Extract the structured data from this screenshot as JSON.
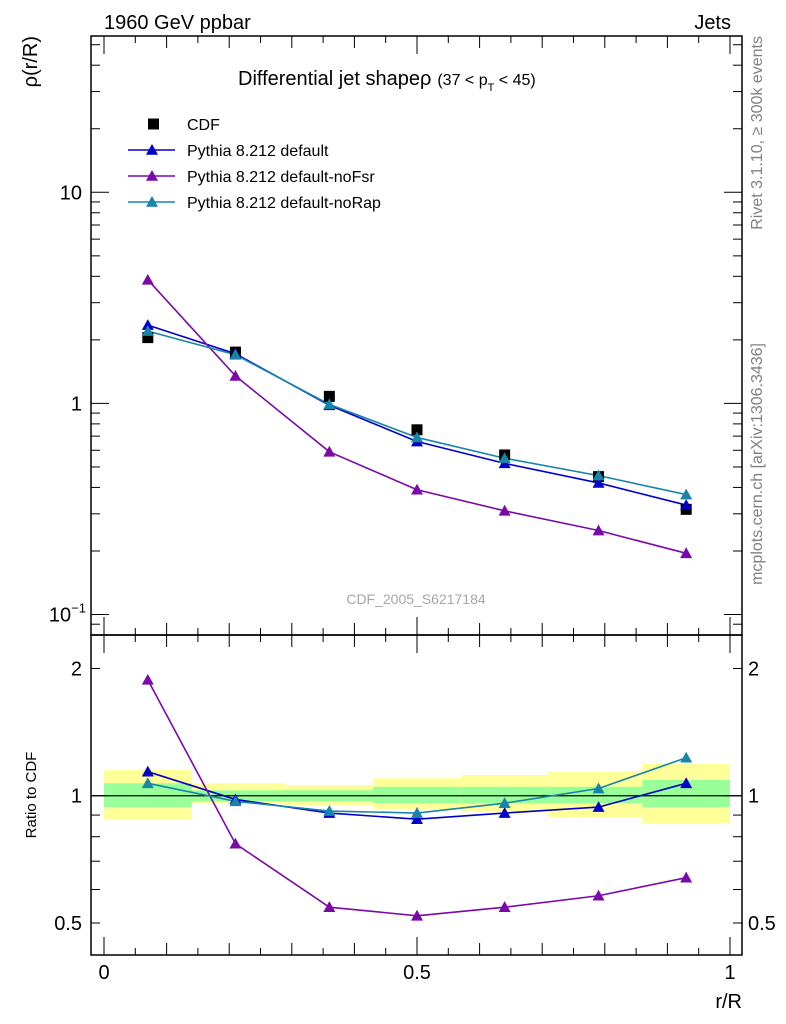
{
  "header": {
    "left": "1960 GeV ppbar",
    "right": "Jets"
  },
  "side_text": {
    "top": "Rivet 3.1.10, ≥ 300k events",
    "bottom": "mcplots.cern.ch [arXiv:1306.3436]"
  },
  "colors": {
    "data": "#000000",
    "default": "#0000cc",
    "noFsr": "#7a0aa8",
    "noRap": "#1784a8",
    "band_inner": "#99ff99",
    "band_outer": "#ffff99"
  },
  "chart_data": [
    {
      "type": "line",
      "title": "Differential jet shapeρ",
      "title_suffix": "(37 < p",
      "title_sub": "T",
      "title_end": " < 45)",
      "ylabel": "ρ(r/R)",
      "xlabel": "",
      "yscale": "log",
      "xlim": [
        0,
        1
      ],
      "ylim": [
        0.08,
        55
      ],
      "yticks": [
        {
          "value": 10,
          "label": "10"
        },
        {
          "value": 1,
          "label": "1"
        },
        {
          "value": 0.1,
          "label": "10",
          "sup": "−1"
        }
      ],
      "watermark": "CDF_2005_S6217184",
      "legend": "top-left",
      "x": [
        0.07,
        0.21,
        0.36,
        0.5,
        0.64,
        0.79,
        0.93
      ],
      "series": [
        {
          "name": "CDF",
          "style": "square",
          "color_key": "data",
          "values": [
            2.05,
            1.75,
            1.08,
            0.75,
            0.57,
            0.45,
            0.315
          ]
        },
        {
          "name": "Pythia 8.212 default",
          "style": "line",
          "color_key": "default",
          "values": [
            2.35,
            1.72,
            0.98,
            0.66,
            0.52,
            0.42,
            0.33
          ]
        },
        {
          "name": "Pythia 8.212 default-noFsr",
          "style": "line",
          "color_key": "noFsr",
          "values": [
            3.85,
            1.35,
            0.59,
            0.39,
            0.31,
            0.25,
            0.195
          ]
        },
        {
          "name": "Pythia 8.212 default-noRap",
          "style": "line",
          "color_key": "noRap",
          "values": [
            2.2,
            1.7,
            0.99,
            0.69,
            0.55,
            0.455,
            0.37
          ]
        }
      ]
    },
    {
      "type": "line",
      "title": "",
      "ylabel": "Ratio to CDF",
      "xlabel": "r/R",
      "yscale": "log",
      "xlim": [
        0,
        1
      ],
      "ylim": [
        0.42,
        2.4
      ],
      "yticks": [
        {
          "value": 2,
          "label": "2"
        },
        {
          "value": 1,
          "label": "1"
        },
        {
          "value": 0.5,
          "label": "0.5"
        }
      ],
      "xticks": [
        {
          "value": 0,
          "label": "0"
        },
        {
          "value": 0.5,
          "label": "0.5"
        },
        {
          "value": 1,
          "label": "1"
        }
      ],
      "bins": [
        [
          0,
          0.14
        ],
        [
          0.14,
          0.29
        ],
        [
          0.29,
          0.43
        ],
        [
          0.43,
          0.57
        ],
        [
          0.57,
          0.71
        ],
        [
          0.71,
          0.86
        ],
        [
          0.86,
          1.0
        ]
      ],
      "band_inner": [
        [
          0.94,
          1.07
        ],
        [
          0.97,
          1.03
        ],
        [
          0.97,
          1.03
        ],
        [
          0.96,
          1.05
        ],
        [
          0.96,
          1.05
        ],
        [
          0.96,
          1.05
        ],
        [
          0.94,
          1.09
        ]
      ],
      "band_outer": [
        [
          0.88,
          1.15
        ],
        [
          0.96,
          1.07
        ],
        [
          0.95,
          1.06
        ],
        [
          0.93,
          1.1
        ],
        [
          0.92,
          1.12
        ],
        [
          0.89,
          1.14
        ],
        [
          0.86,
          1.19
        ]
      ],
      "x": [
        0.07,
        0.21,
        0.36,
        0.5,
        0.64,
        0.79,
        0.93
      ],
      "series": [
        {
          "name": "Pythia 8.212 default",
          "color_key": "default",
          "values": [
            1.14,
            0.98,
            0.91,
            0.88,
            0.91,
            0.94,
            1.07
          ]
        },
        {
          "name": "Pythia 8.212 default-noFsr",
          "color_key": "noFsr",
          "values": [
            1.88,
            0.77,
            0.545,
            0.52,
            0.545,
            0.58,
            0.64
          ]
        },
        {
          "name": "Pythia 8.212 default-noRap",
          "color_key": "noRap",
          "values": [
            1.07,
            0.97,
            0.92,
            0.91,
            0.96,
            1.04,
            1.23
          ]
        }
      ]
    }
  ]
}
